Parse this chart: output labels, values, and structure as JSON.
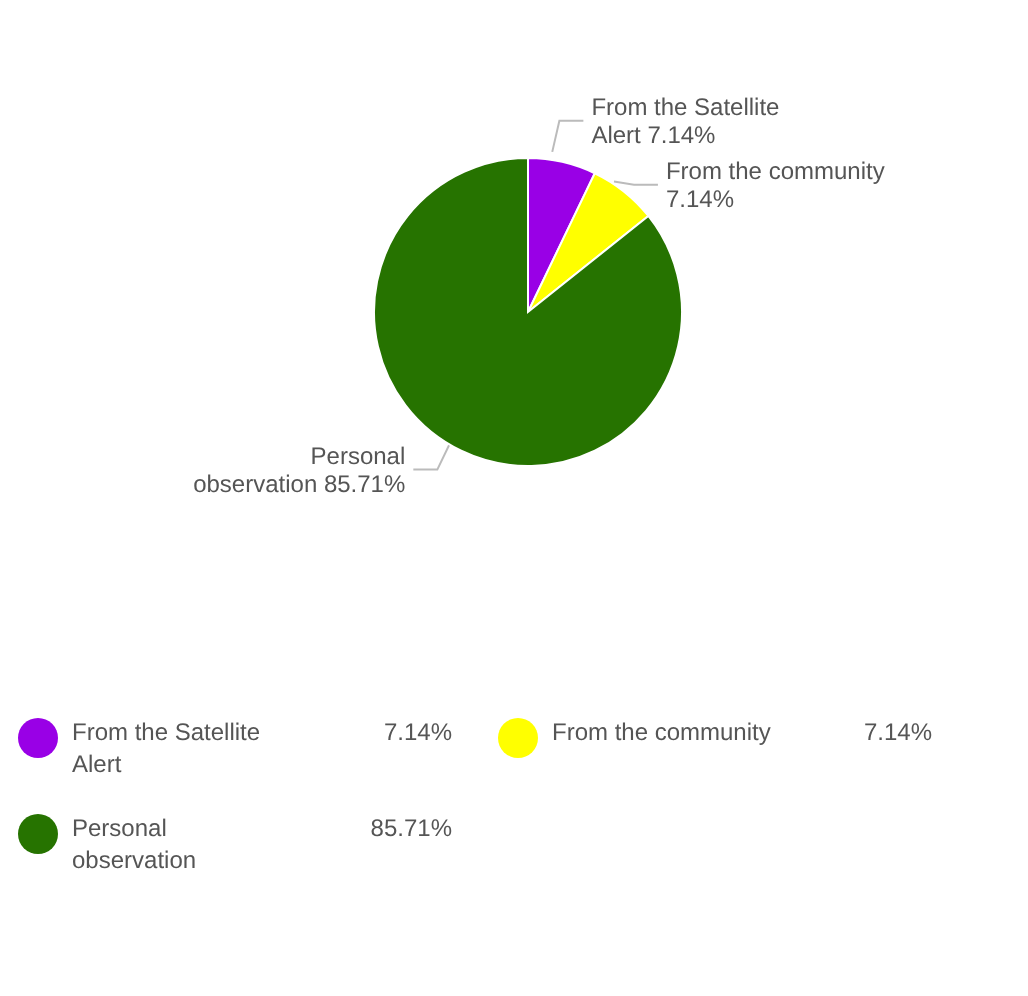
{
  "chart_data": {
    "type": "pie",
    "categories": [
      "From the Satellite Alert",
      "From the community",
      "Personal observation"
    ],
    "values": [
      7.14,
      7.14,
      85.71
    ],
    "value_labels": [
      "7.14%",
      "7.14%",
      "85.71%"
    ],
    "colors": [
      "#9900e6",
      "#ffff00",
      "#267300"
    ],
    "legend": "bottom"
  }
}
